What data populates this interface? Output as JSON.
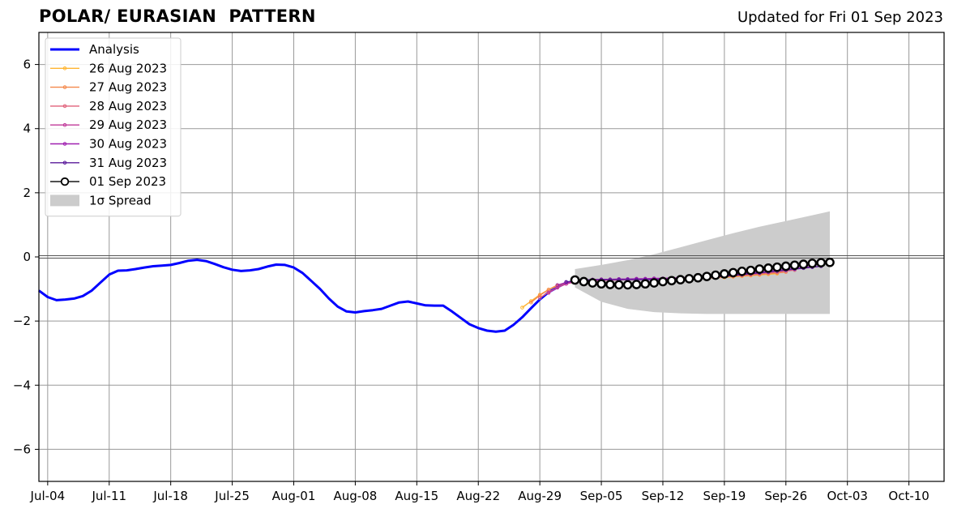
{
  "header": {
    "title": "POLAR/ EURASIAN  PATTERN",
    "updated": "Updated for Fri 01 Sep 2023"
  },
  "chart_data": {
    "type": "line",
    "title": "POLAR/ EURASIAN  PATTERN",
    "xlabel": "",
    "ylabel": "",
    "ylim": [
      -7,
      7
    ],
    "xlim": [
      "2023-07-03",
      "2023-10-14"
    ],
    "grid": true,
    "legend_position": "top-left",
    "x_ticks": [
      "Jul-04",
      "Jul-11",
      "Jul-18",
      "Jul-25",
      "Aug-01",
      "Aug-08",
      "Aug-15",
      "Aug-22",
      "Aug-29",
      "Sep-05",
      "Sep-12",
      "Sep-19",
      "Sep-26",
      "Oct-03",
      "Oct-10"
    ],
    "x_tick_dates": [
      "2023-07-04",
      "2023-07-11",
      "2023-07-18",
      "2023-07-25",
      "2023-08-01",
      "2023-08-08",
      "2023-08-15",
      "2023-08-22",
      "2023-08-29",
      "2023-09-05",
      "2023-09-12",
      "2023-09-19",
      "2023-09-26",
      "2023-10-03",
      "2023-10-10"
    ],
    "y_ticks": [
      -6,
      -4,
      -2,
      0,
      2,
      4,
      6
    ],
    "y_tick_labels": [
      "−6",
      "−4",
      "−2",
      "0",
      "2",
      "4",
      "6"
    ],
    "series": [
      {
        "name": "Analysis",
        "color": "#0000ff",
        "x": [
          "2023-07-03",
          "2023-07-04",
          "2023-07-05",
          "2023-07-06",
          "2023-07-07",
          "2023-07-08",
          "2023-07-09",
          "2023-07-10",
          "2023-07-11",
          "2023-07-12",
          "2023-07-13",
          "2023-07-14",
          "2023-07-15",
          "2023-07-16",
          "2023-07-17",
          "2023-07-18",
          "2023-07-19",
          "2023-07-20",
          "2023-07-21",
          "2023-07-22",
          "2023-07-23",
          "2023-07-24",
          "2023-07-25",
          "2023-07-26",
          "2023-07-27",
          "2023-07-28",
          "2023-07-29",
          "2023-07-30",
          "2023-07-31",
          "2023-08-01",
          "2023-08-02",
          "2023-08-03",
          "2023-08-04",
          "2023-08-05",
          "2023-08-06",
          "2023-08-07",
          "2023-08-08",
          "2023-08-09",
          "2023-08-10",
          "2023-08-11",
          "2023-08-12",
          "2023-08-13",
          "2023-08-14",
          "2023-08-15",
          "2023-08-16",
          "2023-08-17",
          "2023-08-18",
          "2023-08-19",
          "2023-08-20",
          "2023-08-21",
          "2023-08-22",
          "2023-08-23",
          "2023-08-24",
          "2023-08-25",
          "2023-08-26",
          "2023-08-27",
          "2023-08-28",
          "2023-08-29",
          "2023-08-30",
          "2023-08-31",
          "2023-09-01"
        ],
        "values": [
          -1.05,
          -1.25,
          -1.35,
          -1.33,
          -1.3,
          -1.22,
          -1.05,
          -0.8,
          -0.55,
          -0.43,
          -0.42,
          -0.38,
          -0.33,
          -0.29,
          -0.27,
          -0.25,
          -0.19,
          -0.12,
          -0.09,
          -0.13,
          -0.22,
          -0.32,
          -0.4,
          -0.44,
          -0.42,
          -0.38,
          -0.3,
          -0.24,
          -0.25,
          -0.33,
          -0.5,
          -0.75,
          -1.0,
          -1.3,
          -1.55,
          -1.7,
          -1.73,
          -1.69,
          -1.66,
          -1.62,
          -1.52,
          -1.42,
          -1.39,
          -1.45,
          -1.51,
          -1.52,
          -1.52,
          -1.7,
          -1.9,
          -2.1,
          -2.22,
          -2.3,
          -2.33,
          -2.3,
          -2.12,
          -1.88,
          -1.6,
          -1.33,
          -1.1,
          -0.95,
          -0.8
        ]
      },
      {
        "name": "26 Aug 2023",
        "color": "#ffb531",
        "x": [
          "2023-08-27",
          "2023-08-28",
          "2023-08-29",
          "2023-08-30",
          "2023-08-31",
          "2023-09-01",
          "2023-09-02",
          "2023-09-03",
          "2023-09-04",
          "2023-09-05",
          "2023-09-06",
          "2023-09-07",
          "2023-09-08",
          "2023-09-09",
          "2023-09-10",
          "2023-09-11",
          "2023-09-12",
          "2023-09-13",
          "2023-09-14",
          "2023-09-15",
          "2023-09-16",
          "2023-09-17",
          "2023-09-18",
          "2023-09-19",
          "2023-09-20",
          "2023-09-21",
          "2023-09-22",
          "2023-09-23",
          "2023-09-24",
          "2023-09-25"
        ],
        "values": [
          -1.58,
          -1.38,
          -1.18,
          -1.02,
          -0.9,
          -0.8,
          -0.75,
          -0.72,
          -0.71,
          -0.7,
          -0.7,
          -0.7,
          -0.7,
          -0.69,
          -0.69,
          -0.69,
          -0.68,
          -0.68,
          -0.68,
          -0.67,
          -0.67,
          -0.66,
          -0.65,
          -0.64,
          -0.62,
          -0.6,
          -0.58,
          -0.56,
          -0.54,
          -0.52
        ]
      },
      {
        "name": "27 Aug 2023",
        "color": "#f4884a",
        "x": [
          "2023-08-28",
          "2023-08-29",
          "2023-08-30",
          "2023-08-31",
          "2023-09-01",
          "2023-09-02",
          "2023-09-03",
          "2023-09-04",
          "2023-09-05",
          "2023-09-06",
          "2023-09-07",
          "2023-09-08",
          "2023-09-09",
          "2023-09-10",
          "2023-09-11",
          "2023-09-12",
          "2023-09-13",
          "2023-09-14",
          "2023-09-15",
          "2023-09-16",
          "2023-09-17",
          "2023-09-18",
          "2023-09-19",
          "2023-09-20",
          "2023-09-21",
          "2023-09-22",
          "2023-09-23",
          "2023-09-24",
          "2023-09-25",
          "2023-09-26"
        ],
        "values": [
          -1.42,
          -1.2,
          -1.02,
          -0.88,
          -0.8,
          -0.76,
          -0.74,
          -0.73,
          -0.72,
          -0.72,
          -0.71,
          -0.71,
          -0.71,
          -0.7,
          -0.7,
          -0.7,
          -0.69,
          -0.69,
          -0.68,
          -0.67,
          -0.66,
          -0.65,
          -0.63,
          -0.61,
          -0.59,
          -0.57,
          -0.55,
          -0.52,
          -0.5,
          -0.47
        ]
      },
      {
        "name": "28 Aug 2023",
        "color": "#e0607a",
        "x": [
          "2023-08-29",
          "2023-08-30",
          "2023-08-31",
          "2023-09-01",
          "2023-09-02",
          "2023-09-03",
          "2023-09-04",
          "2023-09-05",
          "2023-09-06",
          "2023-09-07",
          "2023-09-08",
          "2023-09-09",
          "2023-09-10",
          "2023-09-11",
          "2023-09-12",
          "2023-09-13",
          "2023-09-14",
          "2023-09-15",
          "2023-09-16",
          "2023-09-17",
          "2023-09-18",
          "2023-09-19",
          "2023-09-20",
          "2023-09-21",
          "2023-09-22",
          "2023-09-23",
          "2023-09-24",
          "2023-09-25",
          "2023-09-26",
          "2023-09-27"
        ],
        "values": [
          -1.28,
          -1.1,
          -0.95,
          -0.84,
          -0.78,
          -0.75,
          -0.74,
          -0.73,
          -0.72,
          -0.72,
          -0.71,
          -0.71,
          -0.7,
          -0.7,
          -0.69,
          -0.69,
          -0.68,
          -0.67,
          -0.66,
          -0.65,
          -0.63,
          -0.61,
          -0.59,
          -0.57,
          -0.55,
          -0.52,
          -0.5,
          -0.47,
          -0.44,
          -0.41
        ]
      },
      {
        "name": "29 Aug 2023",
        "color": "#c0399a",
        "x": [
          "2023-08-30",
          "2023-08-31",
          "2023-09-01",
          "2023-09-02",
          "2023-09-03",
          "2023-09-04",
          "2023-09-05",
          "2023-09-06",
          "2023-09-07",
          "2023-09-08",
          "2023-09-09",
          "2023-09-10",
          "2023-09-11",
          "2023-09-12",
          "2023-09-13",
          "2023-09-14",
          "2023-09-15",
          "2023-09-16",
          "2023-09-17",
          "2023-09-18",
          "2023-09-19",
          "2023-09-20",
          "2023-09-21",
          "2023-09-22",
          "2023-09-23",
          "2023-09-24",
          "2023-09-25",
          "2023-09-26",
          "2023-09-27",
          "2023-09-28"
        ],
        "values": [
          -1.12,
          -0.96,
          -0.84,
          -0.77,
          -0.74,
          -0.72,
          -0.71,
          -0.71,
          -0.7,
          -0.7,
          -0.69,
          -0.69,
          -0.68,
          -0.68,
          -0.67,
          -0.66,
          -0.65,
          -0.63,
          -0.62,
          -0.6,
          -0.58,
          -0.56,
          -0.54,
          -0.51,
          -0.49,
          -0.46,
          -0.43,
          -0.4,
          -0.37,
          -0.34
        ]
      },
      {
        "name": "30 Aug 2023",
        "color": "#a020b0",
        "x": [
          "2023-08-31",
          "2023-09-01",
          "2023-09-02",
          "2023-09-03",
          "2023-09-04",
          "2023-09-05",
          "2023-09-06",
          "2023-09-07",
          "2023-09-08",
          "2023-09-09",
          "2023-09-10",
          "2023-09-11",
          "2023-09-12",
          "2023-09-13",
          "2023-09-14",
          "2023-09-15",
          "2023-09-16",
          "2023-09-17",
          "2023-09-18",
          "2023-09-19",
          "2023-09-20",
          "2023-09-21",
          "2023-09-22",
          "2023-09-23",
          "2023-09-24",
          "2023-09-25",
          "2023-09-26",
          "2023-09-27",
          "2023-09-28",
          "2023-09-29"
        ],
        "values": [
          -0.88,
          -0.8,
          -0.75,
          -0.72,
          -0.71,
          -0.7,
          -0.7,
          -0.69,
          -0.69,
          -0.68,
          -0.68,
          -0.67,
          -0.67,
          -0.66,
          -0.65,
          -0.64,
          -0.62,
          -0.61,
          -0.59,
          -0.57,
          -0.55,
          -0.53,
          -0.5,
          -0.48,
          -0.45,
          -0.42,
          -0.39,
          -0.36,
          -0.33,
          -0.3
        ]
      },
      {
        "name": "31 Aug 2023",
        "color": "#5a1a9a",
        "x": [
          "2023-09-01",
          "2023-09-02",
          "2023-09-03",
          "2023-09-04",
          "2023-09-05",
          "2023-09-06",
          "2023-09-07",
          "2023-09-08",
          "2023-09-09",
          "2023-09-10",
          "2023-09-11",
          "2023-09-12",
          "2023-09-13",
          "2023-09-14",
          "2023-09-15",
          "2023-09-16",
          "2023-09-17",
          "2023-09-18",
          "2023-09-19",
          "2023-09-20",
          "2023-09-21",
          "2023-09-22",
          "2023-09-23",
          "2023-09-24",
          "2023-09-25",
          "2023-09-26",
          "2023-09-27",
          "2023-09-28",
          "2023-09-29",
          "2023-09-30"
        ],
        "values": [
          -0.78,
          -0.74,
          -0.72,
          -0.71,
          -0.71,
          -0.71,
          -0.71,
          -0.71,
          -0.71,
          -0.71,
          -0.71,
          -0.7,
          -0.7,
          -0.69,
          -0.68,
          -0.66,
          -0.64,
          -0.62,
          -0.6,
          -0.58,
          -0.55,
          -0.52,
          -0.5,
          -0.47,
          -0.44,
          -0.41,
          -0.38,
          -0.35,
          -0.32,
          -0.29
        ]
      },
      {
        "name": "01 Sep 2023",
        "color": "#000000",
        "marker": "open-circle",
        "x": [
          "2023-09-02",
          "2023-09-03",
          "2023-09-04",
          "2023-09-05",
          "2023-09-06",
          "2023-09-07",
          "2023-09-08",
          "2023-09-09",
          "2023-09-10",
          "2023-09-11",
          "2023-09-12",
          "2023-09-13",
          "2023-09-14",
          "2023-09-15",
          "2023-09-16",
          "2023-09-17",
          "2023-09-18",
          "2023-09-19",
          "2023-09-20",
          "2023-09-21",
          "2023-09-22",
          "2023-09-23",
          "2023-09-24",
          "2023-09-25",
          "2023-09-26",
          "2023-09-27",
          "2023-09-28",
          "2023-09-29",
          "2023-09-30",
          "2023-10-01"
        ],
        "values": [
          -0.72,
          -0.77,
          -0.81,
          -0.84,
          -0.86,
          -0.87,
          -0.87,
          -0.86,
          -0.84,
          -0.81,
          -0.77,
          -0.74,
          -0.71,
          -0.68,
          -0.65,
          -0.61,
          -0.57,
          -0.53,
          -0.49,
          -0.45,
          -0.42,
          -0.38,
          -0.35,
          -0.32,
          -0.29,
          -0.26,
          -0.23,
          -0.2,
          -0.18,
          -0.17
        ]
      }
    ],
    "spread": {
      "name": "1σ Spread",
      "color": "#cccccc",
      "x": [
        "2023-09-02",
        "2023-09-05",
        "2023-09-08",
        "2023-09-11",
        "2023-09-14",
        "2023-09-17",
        "2023-09-20",
        "2023-09-23",
        "2023-09-26",
        "2023-09-29",
        "2023-10-01"
      ],
      "upper": [
        -0.38,
        -0.25,
        -0.1,
        0.08,
        0.3,
        0.52,
        0.74,
        0.94,
        1.12,
        1.3,
        1.42
      ],
      "lower": [
        -0.95,
        -1.4,
        -1.62,
        -1.72,
        -1.76,
        -1.78,
        -1.78,
        -1.78,
        -1.78,
        -1.78,
        -1.78
      ]
    }
  }
}
